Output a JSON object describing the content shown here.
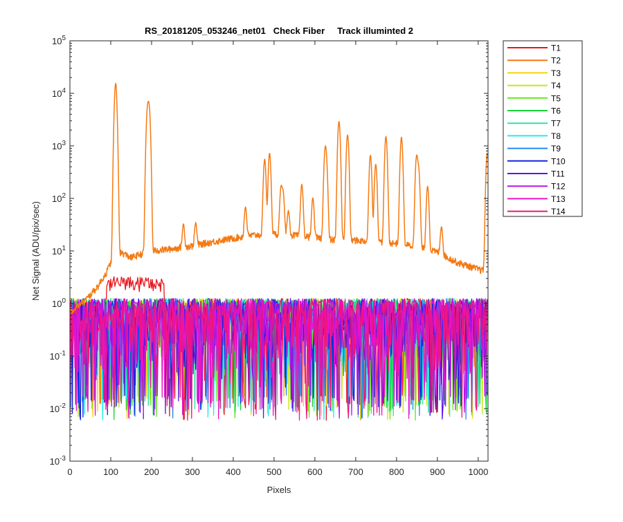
{
  "chart_data": {
    "type": "line",
    "title": "RS_20181205_053246_net01   Check Fiber     Track illuminted 2",
    "xlabel": "Pixels",
    "ylabel": "Net Signal (ADU/pix/sec)",
    "xlim": [
      0,
      1024
    ],
    "ylim": [
      0.001,
      100000
    ],
    "yscale": "log",
    "grid": false,
    "legend_position": "outside-right",
    "x_ticks": [
      "0",
      "100",
      "200",
      "300",
      "400",
      "500",
      "600",
      "700",
      "800",
      "900",
      "1000"
    ],
    "y_ticks": [
      {
        "base": "10",
        "exp": "-3"
      },
      {
        "base": "10",
        "exp": "-2"
      },
      {
        "base": "10",
        "exp": "-1"
      },
      {
        "base": "10",
        "exp": "0"
      },
      {
        "base": "10",
        "exp": "1"
      },
      {
        "base": "10",
        "exp": "2"
      },
      {
        "base": "10",
        "exp": "3"
      },
      {
        "base": "10",
        "exp": "4"
      },
      {
        "base": "10",
        "exp": "5"
      }
    ],
    "series": [
      {
        "name": "T1",
        "color": "#e8141c"
      },
      {
        "name": "T2",
        "color": "#f47a14",
        "baseline": [
          [
            0,
            0.7
          ],
          [
            40,
            1.2
          ],
          [
            70,
            2.2
          ],
          [
            90,
            4
          ],
          [
            100,
            6
          ],
          [
            110,
            10
          ],
          [
            130,
            9
          ],
          [
            150,
            7.5
          ],
          [
            170,
            8.5
          ],
          [
            200,
            10
          ],
          [
            250,
            11
          ],
          [
            300,
            12.5
          ],
          [
            350,
            15
          ],
          [
            400,
            17.5
          ],
          [
            450,
            20
          ],
          [
            500,
            21
          ],
          [
            550,
            20
          ],
          [
            600,
            18
          ],
          [
            650,
            16
          ],
          [
            700,
            16
          ],
          [
            750,
            15
          ],
          [
            800,
            14
          ],
          [
            850,
            12
          ],
          [
            900,
            9.5
          ],
          [
            950,
            6
          ],
          [
            1000,
            4.5
          ],
          [
            1022,
            4
          ]
        ],
        "peaks": [
          {
            "x": 112,
            "y": 15500
          },
          {
            "x": 190,
            "y": 4800
          },
          {
            "x": 194,
            "y": 5200
          },
          {
            "x": 278,
            "y": 20
          },
          {
            "x": 308,
            "y": 21
          },
          {
            "x": 430,
            "y": 50
          },
          {
            "x": 477,
            "y": 540
          },
          {
            "x": 489,
            "y": 700
          },
          {
            "x": 517,
            "y": 140
          },
          {
            "x": 522,
            "y": 110
          },
          {
            "x": 535,
            "y": 40
          },
          {
            "x": 568,
            "y": 165
          },
          {
            "x": 595,
            "y": 85
          },
          {
            "x": 625,
            "y": 750
          },
          {
            "x": 628,
            "y": 420
          },
          {
            "x": 659,
            "y": 2900
          },
          {
            "x": 680,
            "y": 1600
          },
          {
            "x": 736,
            "y": 650
          },
          {
            "x": 749,
            "y": 430
          },
          {
            "x": 774,
            "y": 1500
          },
          {
            "x": 812,
            "y": 1450
          },
          {
            "x": 849,
            "y": 620
          },
          {
            "x": 854,
            "y": 340
          },
          {
            "x": 876,
            "y": 160
          },
          {
            "x": 910,
            "y": 21
          },
          {
            "x": 1022,
            "y": 700
          }
        ]
      },
      {
        "name": "T3",
        "color": "#f5d20a"
      },
      {
        "name": "T4",
        "color": "#c3e814"
      },
      {
        "name": "T5",
        "color": "#66e81a"
      },
      {
        "name": "T6",
        "color": "#17d43a"
      },
      {
        "name": "T7",
        "color": "#2ee3a6"
      },
      {
        "name": "T8",
        "color": "#22eaea"
      },
      {
        "name": "T9",
        "color": "#1e8cf0"
      },
      {
        "name": "T10",
        "color": "#1023e0"
      },
      {
        "name": "T11",
        "color": "#5b14e6"
      },
      {
        "name": "T12",
        "color": "#b814e6"
      },
      {
        "name": "T13",
        "color": "#ea14c8"
      },
      {
        "name": "T14",
        "color": "#f0147a"
      }
    ],
    "noise_tracks": {
      "level_median": 0.5,
      "level_min": 0.006,
      "level_max": 2.0,
      "bump_series": "T1",
      "bump_range": [
        90,
        230
      ],
      "bump_level": 2.7
    }
  }
}
